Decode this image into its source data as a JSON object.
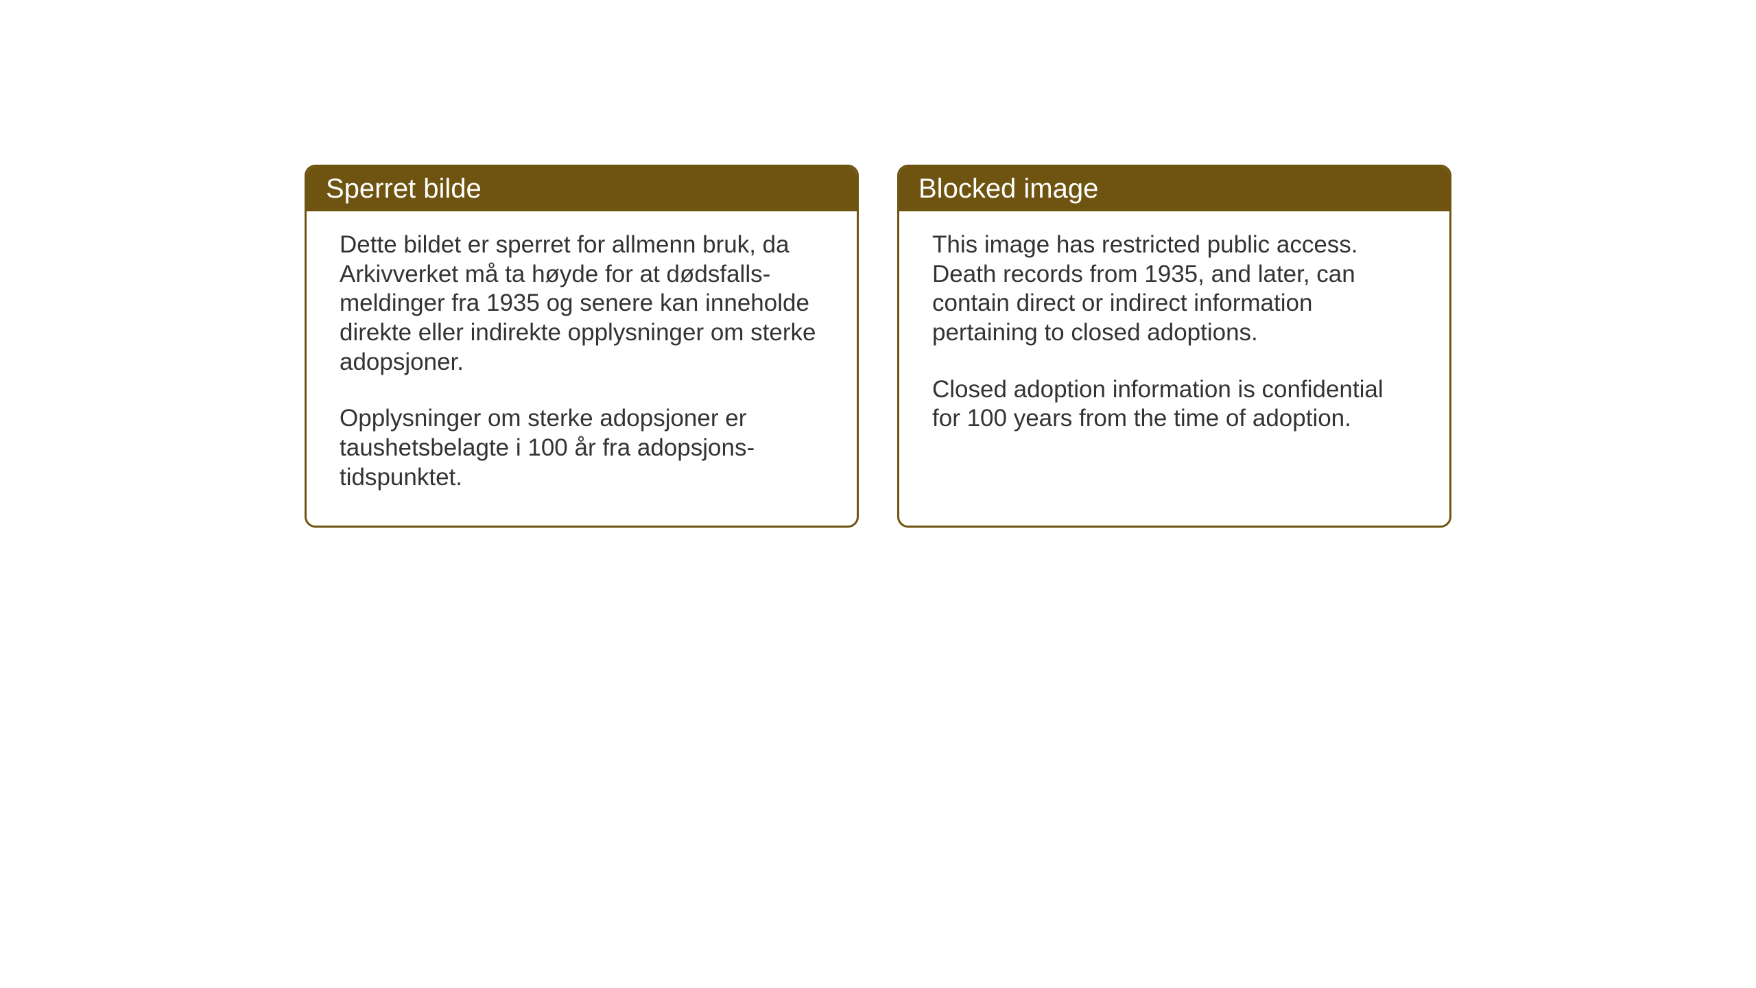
{
  "background_color": "#ffffff",
  "notices": {
    "border_color": "#6e5410",
    "border_width": 3,
    "border_radius": 16,
    "header_bg_color": "#6e5410",
    "header_text_color": "#ffffff",
    "header_fontsize": 40,
    "body_text_color": "#333333",
    "body_fontsize": 35,
    "gap": 56,
    "left": {
      "title": "Sperret bilde",
      "paragraph1": "Dette bildet er sperret for allmenn bruk, da Arkivverket må ta høyde for at dødsfalls-meldinger fra 1935 og senere kan inneholde direkte eller indirekte opplysninger om sterke adopsjoner.",
      "paragraph2": "Opplysninger om sterke adopsjoner er taushetsbelagte i 100 år fra adopsjons-tidspunktet."
    },
    "right": {
      "title": "Blocked image",
      "paragraph1": "This image has restricted public access. Death records from 1935, and later, can contain direct or indirect information pertaining to closed adoptions.",
      "paragraph2": "Closed adoption information is confidential for 100 years from the time of adoption."
    }
  }
}
